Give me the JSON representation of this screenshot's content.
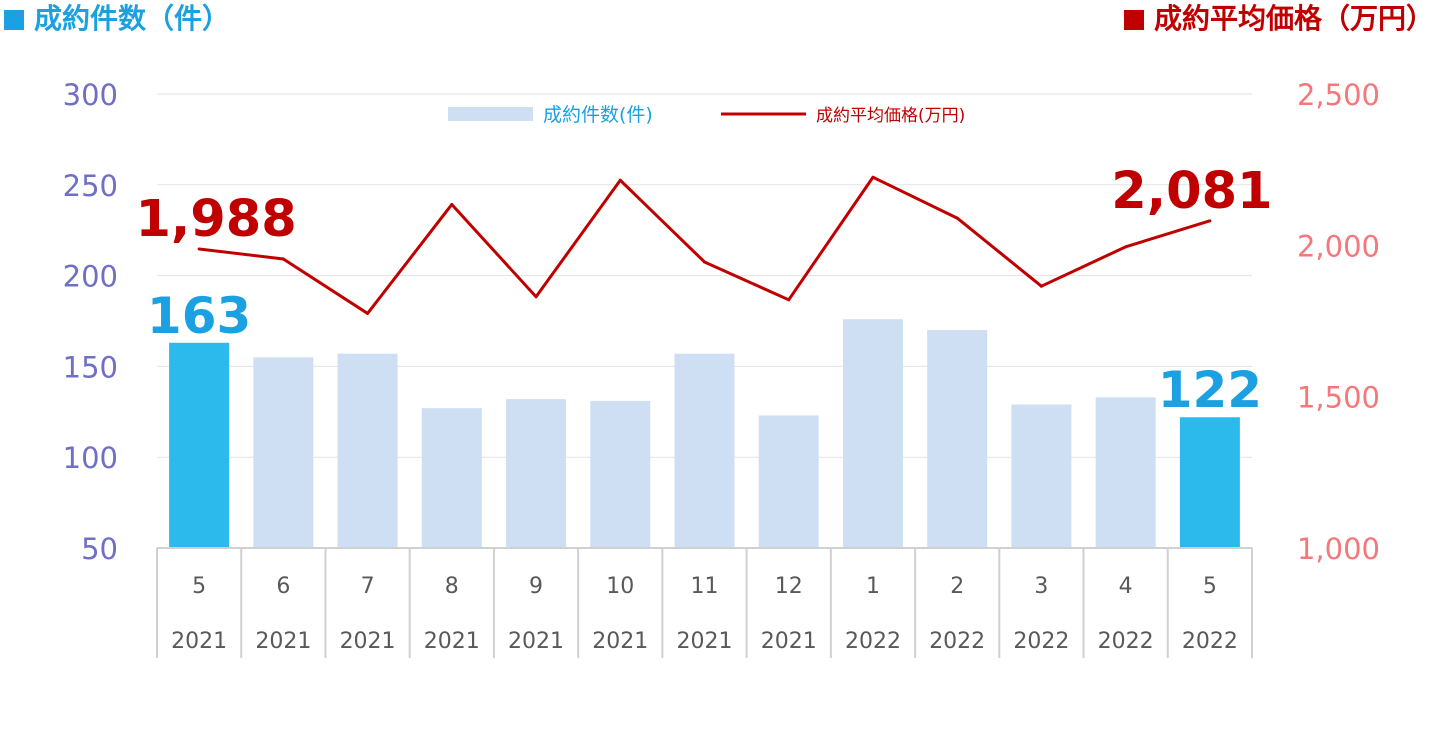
{
  "header": {
    "left_label": "成約件数（件）",
    "right_label": "成約平均価格（万円）"
  },
  "colors": {
    "bar": "#cfdff3",
    "bar_highlight": "#2cb9ec",
    "line": "#c00000",
    "left_axis_text": "#6f6fc6",
    "right_axis_text": "#f4777a",
    "bar_label_text": "#1ba1e2",
    "line_label_text": "#c00000"
  },
  "chart_data": {
    "type": "bar",
    "categories": [
      "5|2021",
      "6|2021",
      "7|2021",
      "8|2021",
      "9|2021",
      "10|2021",
      "11|2021",
      "12|2021",
      "1|2022",
      "2|2022",
      "3|2022",
      "4|2022",
      "5|2022"
    ],
    "x_months": [
      "5",
      "6",
      "7",
      "8",
      "9",
      "10",
      "11",
      "12",
      "1",
      "2",
      "3",
      "4",
      "5"
    ],
    "x_years": [
      "2021",
      "2021",
      "2021",
      "2021",
      "2021",
      "2021",
      "2021",
      "2021",
      "2022",
      "2022",
      "2022",
      "2022",
      "2022"
    ],
    "series": [
      {
        "name": "成約件数(件)",
        "type": "bar",
        "axis": "left",
        "values": [
          163,
          155,
          157,
          127,
          132,
          131,
          157,
          123,
          176,
          170,
          129,
          133,
          122
        ]
      },
      {
        "name": "成約平均価格(万円)",
        "type": "line",
        "axis": "right",
        "values": [
          1988,
          1955,
          1775,
          2135,
          1830,
          2215,
          1945,
          1820,
          2225,
          2090,
          1865,
          1995,
          2081
        ]
      }
    ],
    "highlight_indices": [
      0,
      12
    ],
    "bar_labels": [
      {
        "index": 0,
        "text": "163"
      },
      {
        "index": 12,
        "text": "122"
      }
    ],
    "line_labels": [
      {
        "index": 0,
        "text": "1,988"
      },
      {
        "index": 12,
        "text": "2,081"
      }
    ],
    "y_left": {
      "min": 50,
      "max": 300,
      "ticks": [
        50,
        100,
        150,
        200,
        250,
        300
      ],
      "tick_labels": [
        "50",
        "100",
        "150",
        "200",
        "250",
        "300"
      ]
    },
    "y_right": {
      "min": 1000,
      "max": 2500,
      "ticks": [
        1000,
        1500,
        2000,
        2500
      ],
      "tick_labels": [
        "1,000",
        "1,500",
        "2,000",
        "2,500"
      ]
    },
    "legend": {
      "position": "top-center",
      "items": [
        "成約件数(件)",
        "成約平均価格(万円)"
      ]
    },
    "grid": true
  }
}
